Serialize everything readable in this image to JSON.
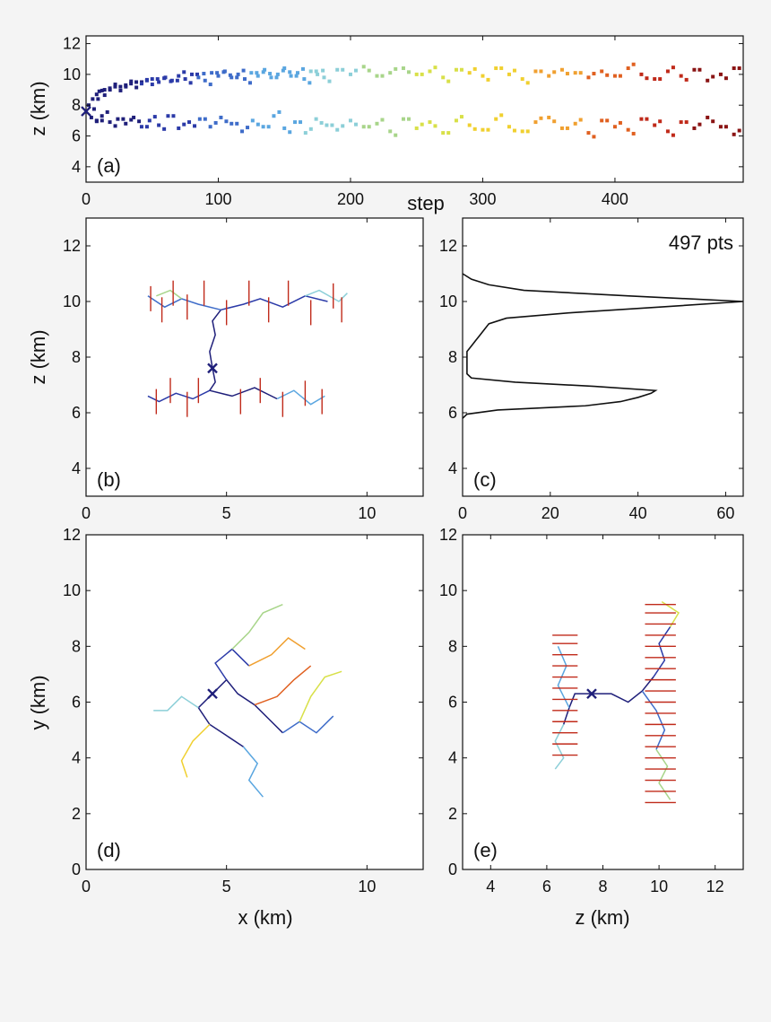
{
  "chart_data": [
    {
      "id": "a",
      "type": "scatter",
      "panel_label": "(a)",
      "xlabel": "step",
      "ylabel": "z (km)",
      "xlim": [
        0,
        497
      ],
      "ylim": [
        3,
        12.5
      ],
      "xticks": [
        0,
        100,
        200,
        300,
        400
      ],
      "yticks": [
        4,
        6,
        8,
        10,
        12
      ],
      "colormap": [
        "#1f1f7a",
        "#2b3aa8",
        "#3e6cc9",
        "#5aa6e0",
        "#8ccfd8",
        "#a8d58a",
        "#d8e048",
        "#f0d030",
        "#f0a030",
        "#e06020",
        "#c02a1a",
        "#8a1414"
      ],
      "start_marker": {
        "x": 0,
        "y": 7.6,
        "symbol": "x"
      },
      "series": [
        {
          "values_x": [
            2,
            5,
            8,
            10,
            14,
            18,
            22,
            26,
            30,
            34,
            38,
            42,
            46,
            50,
            55,
            60,
            65,
            70,
            75,
            80,
            85,
            90,
            95,
            100,
            105,
            110,
            115,
            120,
            125,
            130,
            135,
            140,
            145,
            150,
            155,
            160,
            165,
            170,
            175,
            180,
            190,
            200,
            210,
            220,
            230,
            240,
            250,
            260,
            270,
            280,
            290,
            300,
            310,
            320,
            330,
            340,
            350,
            360,
            370,
            380,
            390,
            400,
            410,
            420,
            430,
            440,
            450,
            460,
            470,
            480,
            490
          ],
          "values_y": [
            8.0,
            8.4,
            8.7,
            8.9,
            9.0,
            9.1,
            9.2,
            9.2,
            9.3,
            9.4,
            9.5,
            9.4,
            9.6,
            9.7,
            9.5,
            9.8,
            9.6,
            9.9,
            9.7,
            10.0,
            9.8,
            9.6,
            10.1,
            9.9,
            10.2,
            9.8,
            10.0,
            9.7,
            10.1,
            9.9,
            10.3,
            9.8,
            10.0,
            10.4,
            9.9,
            10.1,
            9.7,
            10.2,
            10.0,
            9.8,
            10.3,
            10.0,
            10.5,
            9.9,
            10.1,
            10.4,
            10.0,
            10.2,
            9.8,
            10.3,
            10.1,
            9.9,
            10.4,
            10.0,
            9.7,
            10.2,
            9.9,
            10.3,
            10.1,
            9.8,
            10.2,
            9.9,
            10.4,
            10.0,
            9.7,
            10.2,
            9.9,
            10.3,
            9.6,
            10.0,
            10.4
          ]
        },
        {
          "values_x": [
            4,
            8,
            12,
            18,
            24,
            30,
            36,
            42,
            48,
            55,
            62,
            70,
            78,
            86,
            94,
            102,
            110,
            118,
            126,
            134,
            142,
            150,
            158,
            166,
            174,
            182,
            190,
            200,
            210,
            220,
            230,
            240,
            250,
            260,
            270,
            280,
            290,
            300,
            310,
            320,
            330,
            340,
            350,
            360,
            370,
            380,
            390,
            400,
            410,
            420,
            430,
            440,
            450,
            460,
            470,
            480,
            490
          ],
          "values_y": [
            7.2,
            7.0,
            7.3,
            6.9,
            7.1,
            6.8,
            7.2,
            6.6,
            7.0,
            6.7,
            7.3,
            6.5,
            6.9,
            7.1,
            6.6,
            7.2,
            6.8,
            6.3,
            7.0,
            6.6,
            7.3,
            6.5,
            6.9,
            6.2,
            7.1,
            6.7,
            6.4,
            7.0,
            6.6,
            6.8,
            6.3,
            7.1,
            6.5,
            6.9,
            6.2,
            7.0,
            6.7,
            6.4,
            7.1,
            6.6,
            6.3,
            6.9,
            7.2,
            6.5,
            6.8,
            6.2,
            7.0,
            6.6,
            6.4,
            7.1,
            6.7,
            6.3,
            6.9,
            6.5,
            7.2,
            6.6,
            6.1
          ]
        }
      ]
    },
    {
      "id": "b",
      "type": "line",
      "panel_label": "(b)",
      "xlabel": "",
      "ylabel": "z (km)",
      "xlim": [
        0,
        12
      ],
      "ylim": [
        3,
        13
      ],
      "xticks": [
        0,
        5,
        10
      ],
      "yticks": [
        4,
        6,
        8,
        10,
        12
      ],
      "start_marker": {
        "x": 4.5,
        "y": 7.6,
        "symbol": "x"
      },
      "branches": [
        {
          "c": 0,
          "pts": [
            [
              4.5,
              7.6
            ],
            [
              4.4,
              8.2
            ],
            [
              4.6,
              8.8
            ],
            [
              4.5,
              9.3
            ],
            [
              4.8,
              9.7
            ]
          ]
        },
        {
          "c": 1,
          "pts": [
            [
              4.8,
              9.7
            ],
            [
              5.6,
              9.9
            ],
            [
              6.2,
              10.1
            ],
            [
              7.0,
              9.8
            ],
            [
              7.8,
              10.2
            ],
            [
              8.6,
              10.0
            ]
          ]
        },
        {
          "c": 2,
          "pts": [
            [
              4.8,
              9.7
            ],
            [
              4.0,
              9.9
            ],
            [
              3.4,
              10.1
            ],
            [
              2.8,
              9.8
            ],
            [
              2.2,
              10.2
            ]
          ]
        },
        {
          "c": 0,
          "pts": [
            [
              4.5,
              7.6
            ],
            [
              4.6,
              7.1
            ],
            [
              4.4,
              6.8
            ],
            [
              5.2,
              6.6
            ],
            [
              6.0,
              6.9
            ],
            [
              6.8,
              6.5
            ]
          ]
        },
        {
          "c": 1,
          "pts": [
            [
              4.4,
              6.8
            ],
            [
              3.8,
              6.5
            ],
            [
              3.2,
              6.7
            ],
            [
              2.6,
              6.4
            ],
            [
              2.2,
              6.6
            ]
          ]
        },
        {
          "c": 3,
          "pts": [
            [
              6.8,
              6.5
            ],
            [
              7.4,
              6.8
            ],
            [
              8.0,
              6.3
            ],
            [
              8.5,
              6.6
            ]
          ]
        },
        {
          "c": 4,
          "pts": [
            [
              7.8,
              10.2
            ],
            [
              8.3,
              10.4
            ],
            [
              9.0,
              10.0
            ],
            [
              9.3,
              10.3
            ]
          ]
        },
        {
          "c": 5,
          "pts": [
            [
              3.4,
              10.1
            ],
            [
              3.0,
              10.4
            ],
            [
              2.5,
              10.2
            ]
          ]
        }
      ],
      "ticks_red": [
        [
          2.3,
          10.1
        ],
        [
          2.7,
          9.7
        ],
        [
          3.1,
          10.3
        ],
        [
          3.6,
          9.8
        ],
        [
          4.2,
          10.3
        ],
        [
          5.0,
          9.6
        ],
        [
          5.8,
          10.3
        ],
        [
          6.5,
          9.7
        ],
        [
          7.2,
          10.3
        ],
        [
          8.0,
          9.6
        ],
        [
          8.8,
          10.2
        ],
        [
          9.1,
          9.7
        ],
        [
          2.5,
          6.4
        ],
        [
          3.0,
          6.8
        ],
        [
          3.6,
          6.3
        ],
        [
          4.0,
          6.8
        ],
        [
          5.5,
          6.4
        ],
        [
          6.2,
          6.8
        ],
        [
          7.0,
          6.3
        ],
        [
          7.8,
          6.7
        ],
        [
          8.4,
          6.4
        ]
      ]
    },
    {
      "id": "c",
      "type": "line",
      "panel_label": "(c)",
      "annotation": "497 pts",
      "xlabel": "",
      "ylabel": "",
      "xlim": [
        0,
        64
      ],
      "ylim": [
        3,
        13
      ],
      "xticks": [
        0,
        20,
        40,
        60
      ],
      "yticks": [
        4,
        6,
        8,
        10,
        12
      ],
      "profile": {
        "z": [
          5.8,
          5.95,
          6.1,
          6.25,
          6.4,
          6.55,
          6.7,
          6.8,
          6.95,
          7.1,
          7.25,
          7.4,
          7.6,
          7.8,
          8.0,
          8.2,
          8.4,
          8.6,
          8.8,
          9.0,
          9.2,
          9.4,
          9.6,
          9.8,
          10.0,
          10.2,
          10.4,
          10.6,
          10.8,
          11.0
        ],
        "count": [
          0,
          1,
          8,
          28,
          36,
          40,
          43,
          44,
          30,
          12,
          2,
          1,
          1,
          1,
          1,
          1,
          2,
          3,
          4,
          5,
          6,
          10,
          25,
          45,
          64,
          38,
          14,
          6,
          2,
          0
        ]
      }
    },
    {
      "id": "d",
      "type": "line",
      "panel_label": "(d)",
      "xlabel": "x (km)",
      "ylabel": "y (km)",
      "xlim": [
        0,
        12
      ],
      "ylim": [
        0,
        12
      ],
      "xticks": [
        0,
        5,
        10
      ],
      "yticks": [
        0,
        2,
        4,
        6,
        8,
        10,
        12
      ],
      "start_marker": {
        "x": 4.5,
        "y": 6.3,
        "symbol": "x"
      },
      "branches": [
        {
          "c": 0,
          "pts": [
            [
              4.5,
              6.3
            ],
            [
              5.0,
              6.8
            ],
            [
              5.4,
              6.3
            ],
            [
              6.0,
              5.9
            ],
            [
              6.5,
              5.4
            ],
            [
              7.0,
              4.9
            ]
          ]
        },
        {
          "c": 0,
          "pts": [
            [
              4.5,
              6.3
            ],
            [
              4.0,
              5.8
            ],
            [
              4.4,
              5.2
            ],
            [
              5.0,
              4.8
            ],
            [
              5.6,
              4.4
            ]
          ]
        },
        {
          "c": 1,
          "pts": [
            [
              5.0,
              6.8
            ],
            [
              4.6,
              7.4
            ],
            [
              5.2,
              7.9
            ],
            [
              5.8,
              7.3
            ]
          ]
        },
        {
          "c": 2,
          "pts": [
            [
              7.0,
              4.9
            ],
            [
              7.6,
              5.3
            ],
            [
              8.2,
              4.9
            ],
            [
              8.8,
              5.5
            ]
          ]
        },
        {
          "c": 3,
          "pts": [
            [
              5.6,
              4.4
            ],
            [
              6.1,
              3.8
            ],
            [
              5.8,
              3.2
            ],
            [
              6.3,
              2.6
            ]
          ]
        },
        {
          "c": 4,
          "pts": [
            [
              4.0,
              5.8
            ],
            [
              3.4,
              6.2
            ],
            [
              2.9,
              5.7
            ],
            [
              2.4,
              5.7
            ]
          ]
        },
        {
          "c": 5,
          "pts": [
            [
              5.2,
              7.9
            ],
            [
              5.8,
              8.5
            ],
            [
              6.3,
              9.2
            ],
            [
              7.0,
              9.5
            ]
          ]
        },
        {
          "c": 6,
          "pts": [
            [
              7.6,
              5.3
            ],
            [
              8.0,
              6.2
            ],
            [
              8.5,
              6.9
            ],
            [
              9.1,
              7.1
            ]
          ]
        },
        {
          "c": 7,
          "pts": [
            [
              4.4,
              5.2
            ],
            [
              3.8,
              4.6
            ],
            [
              3.4,
              3.9
            ],
            [
              3.6,
              3.3
            ]
          ]
        },
        {
          "c": 8,
          "pts": [
            [
              5.8,
              7.3
            ],
            [
              6.6,
              7.7
            ],
            [
              7.2,
              8.3
            ],
            [
              7.8,
              7.9
            ]
          ]
        },
        {
          "c": 9,
          "pts": [
            [
              6.0,
              5.9
            ],
            [
              6.8,
              6.2
            ],
            [
              7.4,
              6.8
            ],
            [
              8.0,
              7.3
            ]
          ]
        }
      ]
    },
    {
      "id": "e",
      "type": "line",
      "panel_label": "(e)",
      "xlabel": "z (km)",
      "ylabel": "",
      "xlim": [
        3,
        13
      ],
      "ylim": [
        0,
        12
      ],
      "xticks": [
        4,
        6,
        8,
        10,
        12
      ],
      "yticks": [
        0,
        2,
        4,
        6,
        8,
        10,
        12
      ],
      "start_marker": {
        "x": 7.6,
        "y": 6.3,
        "symbol": "x"
      },
      "branches": [
        {
          "c": 0,
          "pts": [
            [
              7.6,
              6.3
            ],
            [
              8.3,
              6.3
            ],
            [
              8.9,
              6.0
            ],
            [
              9.4,
              6.4
            ],
            [
              9.8,
              6.9
            ]
          ]
        },
        {
          "c": 0,
          "pts": [
            [
              7.6,
              6.3
            ],
            [
              7.0,
              6.3
            ],
            [
              6.8,
              5.8
            ],
            [
              6.6,
              5.2
            ]
          ]
        },
        {
          "c": 1,
          "pts": [
            [
              9.8,
              6.9
            ],
            [
              10.2,
              7.5
            ],
            [
              10.0,
              8.1
            ],
            [
              10.4,
              8.7
            ]
          ]
        },
        {
          "c": 2,
          "pts": [
            [
              9.4,
              6.4
            ],
            [
              9.9,
              5.7
            ],
            [
              10.2,
              5.0
            ],
            [
              9.9,
              4.3
            ]
          ]
        },
        {
          "c": 3,
          "pts": [
            [
              6.8,
              5.8
            ],
            [
              6.4,
              6.6
            ],
            [
              6.7,
              7.3
            ],
            [
              6.4,
              8.0
            ]
          ]
        },
        {
          "c": 4,
          "pts": [
            [
              6.6,
              5.2
            ],
            [
              6.3,
              4.6
            ],
            [
              6.6,
              4.0
            ],
            [
              6.3,
              3.6
            ]
          ]
        },
        {
          "c": 5,
          "pts": [
            [
              9.9,
              4.3
            ],
            [
              10.3,
              3.7
            ],
            [
              10.0,
              3.1
            ],
            [
              10.4,
              2.5
            ]
          ]
        },
        {
          "c": 6,
          "pts": [
            [
              10.4,
              8.7
            ],
            [
              10.7,
              9.2
            ],
            [
              10.1,
              9.6
            ]
          ]
        }
      ],
      "ticks_red_left": [
        4.1,
        4.5,
        4.9,
        5.3,
        5.7,
        6.1,
        6.5,
        6.9,
        7.3,
        7.7,
        8.1,
        8.4
      ],
      "ticks_red_right": [
        2.4,
        2.8,
        3.2,
        3.6,
        4.0,
        4.4,
        4.8,
        5.2,
        5.6,
        6.0,
        6.4,
        6.8,
        7.2,
        7.6,
        8.0,
        8.4,
        8.8,
        9.2,
        9.5
      ]
    }
  ]
}
